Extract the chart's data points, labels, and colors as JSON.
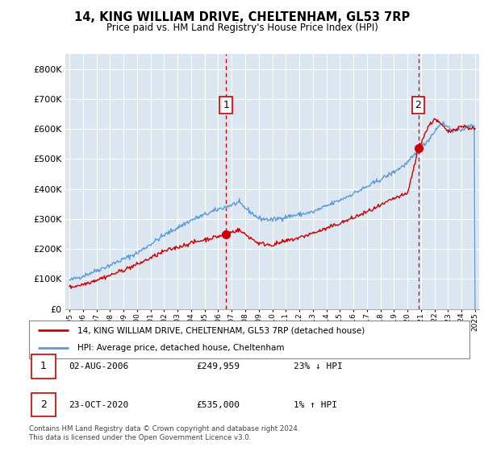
{
  "title": "14, KING WILLIAM DRIVE, CHELTENHAM, GL53 7RP",
  "subtitle": "Price paid vs. HM Land Registry's House Price Index (HPI)",
  "legend_line1": "14, KING WILLIAM DRIVE, CHELTENHAM, GL53 7RP (detached house)",
  "legend_line2": "HPI: Average price, detached house, Cheltenham",
  "transaction1_date": "02-AUG-2006",
  "transaction1_price": "£249,959",
  "transaction1_hpi": "23% ↓ HPI",
  "transaction2_date": "23-OCT-2020",
  "transaction2_price": "£535,000",
  "transaction2_hpi": "1% ↑ HPI",
  "footer": "Contains HM Land Registry data © Crown copyright and database right 2024.\nThis data is licensed under the Open Government Licence v3.0.",
  "hpi_color": "#5b9bd5",
  "price_color": "#cc0000",
  "dashed_color": "#cc0000",
  "plot_bg_color": "#dce6f1",
  "ylim": [
    0,
    850000
  ],
  "yticks": [
    0,
    100000,
    200000,
    300000,
    400000,
    500000,
    600000,
    700000,
    800000
  ],
  "transaction1_year": 2006.58,
  "transaction1_price_val": 249959,
  "transaction2_year": 2020.8,
  "transaction2_price_val": 535000
}
